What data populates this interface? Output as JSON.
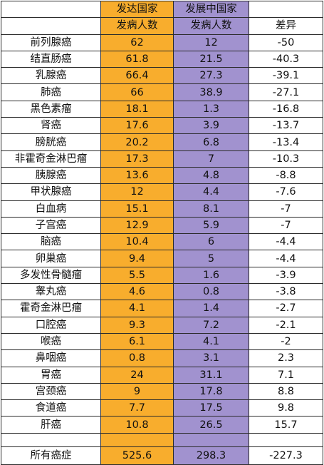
{
  "header": {
    "group_developed": "发达国家",
    "group_developing": "发展中国家",
    "col_developed": "发病人数",
    "col_developing": "发病人数",
    "col_difference": "差异"
  },
  "rows": [
    {
      "name": "前列腺癌",
      "developed": "62",
      "developing": "12",
      "difference": "-50"
    },
    {
      "name": "结直肠癌",
      "developed": "61.8",
      "developing": "21.5",
      "difference": "-40.3"
    },
    {
      "name": "乳腺癌",
      "developed": "66.4",
      "developing": "27.3",
      "difference": "-39.1"
    },
    {
      "name": "肺癌",
      "developed": "66",
      "developing": "38.9",
      "difference": "-27.1"
    },
    {
      "name": "黑色素瘤",
      "developed": "18.1",
      "developing": "1.3",
      "difference": "-16.8"
    },
    {
      "name": "肾癌",
      "developed": "17.6",
      "developing": "3.9",
      "difference": "-13.7"
    },
    {
      "name": "膀胱癌",
      "developed": "20.2",
      "developing": "6.8",
      "difference": "-13.4"
    },
    {
      "name": "非霍奇金淋巴瘤",
      "developed": "17.3",
      "developing": "7",
      "difference": "-10.3"
    },
    {
      "name": "胰腺癌",
      "developed": "13.6",
      "developing": "4.8",
      "difference": "-8.8"
    },
    {
      "name": "甲状腺癌",
      "developed": "12",
      "developing": "4.4",
      "difference": "-7.6"
    },
    {
      "name": "白血病",
      "developed": "15.1",
      "developing": "8.1",
      "difference": "-7"
    },
    {
      "name": "子宫癌",
      "developed": "12.9",
      "developing": "5.9",
      "difference": "-7"
    },
    {
      "name": "脑癌",
      "developed": "10.4",
      "developing": "6",
      "difference": "-4.4"
    },
    {
      "name": "卵巢癌",
      "developed": "9.4",
      "developing": "5",
      "difference": "-4.4"
    },
    {
      "name": "多发性骨髓瘤",
      "developed": "5.5",
      "developing": "1.6",
      "difference": "-3.9"
    },
    {
      "name": "睾丸癌",
      "developed": "4.6",
      "developing": "0.8",
      "difference": "-3.8"
    },
    {
      "name": "霍奇金淋巴瘤",
      "developed": "4.1",
      "developing": "1.4",
      "difference": "-2.7"
    },
    {
      "name": "口腔癌",
      "developed": "9.3",
      "developing": "7.2",
      "difference": "-2.1"
    },
    {
      "name": "喉癌",
      "developed": "6.1",
      "developing": "4.1",
      "difference": "-2"
    },
    {
      "name": "鼻咽癌",
      "developed": "0.8",
      "developing": "3.1",
      "difference": "2.3"
    },
    {
      "name": "胃癌",
      "developed": "24",
      "developing": "31.1",
      "difference": "7.1"
    },
    {
      "name": "宫颈癌",
      "developed": "9",
      "developing": "17.8",
      "difference": "8.8"
    },
    {
      "name": "食道癌",
      "developed": "7.7",
      "developing": "17.5",
      "difference": "9.8"
    },
    {
      "name": "肝癌",
      "developed": "10.8",
      "developing": "26.5",
      "difference": "15.7"
    }
  ],
  "total": {
    "name": "所有癌症",
    "developed": "525.6",
    "developing": "298.3",
    "difference": "-227.3"
  },
  "colors": {
    "developed": "#f8ad2d",
    "developing": "#a192cf",
    "border": "#2b2b2b"
  }
}
